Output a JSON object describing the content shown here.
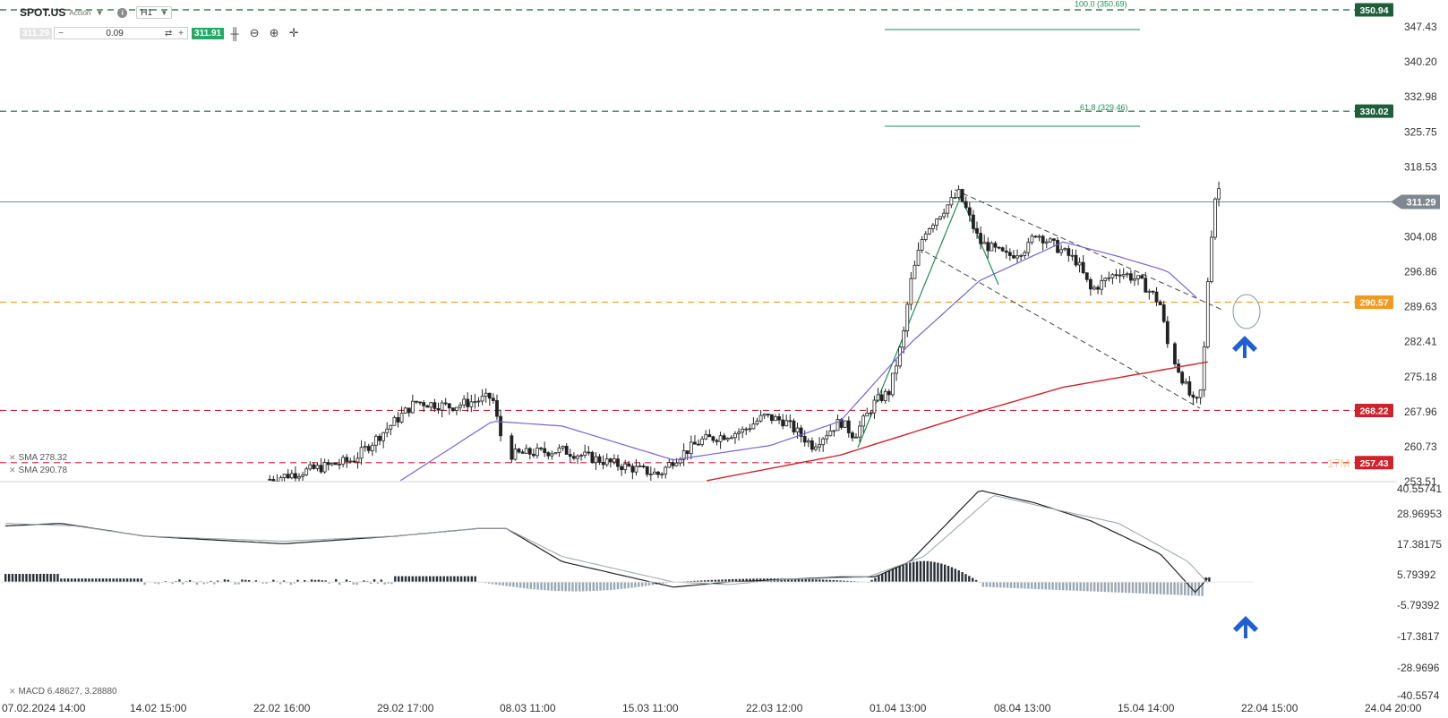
{
  "header": {
    "symbol": "SPOT.US",
    "symbol_type": "Acción",
    "timeframe": "H1",
    "sell_price": "311.29",
    "quantity": "0.09",
    "buy_price": "311.91"
  },
  "price_axis_labels": [
    "347.43",
    "340.20",
    "332.98",
    "325.75",
    "318.53",
    "304.08",
    "296.86",
    "289.63",
    "282.41",
    "275.18",
    "267.96",
    "260.73",
    "253.51"
  ],
  "price_axis_range": [
    253.51,
    351.5
  ],
  "macd_axis_labels": [
    "40.55741",
    "28.96953",
    "17.38175",
    "5.79392",
    "-5.79392",
    "-17.3817",
    "-28.9696",
    "-40.5574"
  ],
  "macd_axis_range": [
    -40.5574,
    40.55741
  ],
  "time_labels": [
    "07.02.2024 14:00",
    "14.02 15:00",
    "22.02 16:00",
    "29.02 17:00",
    "08.03 11:00",
    "15.03 11:00",
    "22.03 12:00",
    "01.04 13:00",
    "08.04 13:00",
    "15.04 14:00",
    "22.04 15:00",
    "24.04 20:00"
  ],
  "levels": [
    {
      "value": 350.94,
      "label": "350.94",
      "color": "#1e5e3a",
      "style": "dashed"
    },
    {
      "value": 330.02,
      "label": "330.02",
      "color": "#1e5e3a",
      "style": "dashed"
    },
    {
      "value": 290.57,
      "label": "290.57",
      "color": "#f39a1e",
      "style": "dashed"
    },
    {
      "value": 268.22,
      "label": "268.22",
      "color": "#d0222b",
      "style": "dashed"
    },
    {
      "value": 257.43,
      "label": "257.43",
      "color": "#d0222b",
      "style": "dashed"
    }
  ],
  "current_price": {
    "value": 311.29,
    "label": "311.29",
    "color": "#7f8890"
  },
  "fib_labels": [
    {
      "text": "100.0 (350.69)",
      "value": 350.69
    },
    {
      "text": "61.8 (329.46)",
      "value": 329.46
    }
  ],
  "overlay_text": "17M",
  "legends": {
    "sma1": "SMA 278.32",
    "sma2": "SMA 290.78",
    "macd": "MACD 6.48627, 3.28880"
  },
  "colors": {
    "sma_fast": "#7b62d6",
    "sma_slow": "#d0222b",
    "fib": "#1e8c57",
    "arrow": "#1f5fd1",
    "macd_line": "#222222",
    "signal_line": "#9aa2a8",
    "hist_pos": "#2a2f36",
    "hist_neg": "#9aa8b3"
  },
  "icons": [
    "chevron-down-icon",
    "info-icon",
    "swap-icon",
    "plus-icon",
    "minus-icon",
    "candles-icon",
    "zoom-out-icon",
    "zoom-in-icon",
    "crosshair-icon",
    "arrow-up-icon"
  ],
  "chart_data": {
    "type": "candlestick",
    "price_keypoints": [
      [
        0,
        252
      ],
      [
        0.19,
        254
      ],
      [
        0.25,
        258
      ],
      [
        0.28,
        266
      ],
      [
        0.295,
        270
      ],
      [
        0.32,
        269
      ],
      [
        0.35,
        271
      ],
      [
        0.355,
        264
      ],
      [
        0.36,
        259
      ],
      [
        0.4,
        260
      ],
      [
        0.44,
        257
      ],
      [
        0.47,
        255
      ],
      [
        0.48,
        258
      ],
      [
        0.5,
        262
      ],
      [
        0.53,
        264
      ],
      [
        0.545,
        267
      ],
      [
        0.56,
        266
      ],
      [
        0.58,
        261
      ],
      [
        0.6,
        266
      ],
      [
        0.61,
        263
      ],
      [
        0.625,
        270
      ],
      [
        0.635,
        272
      ],
      [
        0.645,
        283
      ],
      [
        0.65,
        294
      ],
      [
        0.66,
        305
      ],
      [
        0.675,
        310
      ],
      [
        0.685,
        313
      ],
      [
        0.69,
        310
      ],
      [
        0.7,
        303
      ],
      [
        0.72,
        300
      ],
      [
        0.735,
        302
      ],
      [
        0.74,
        305
      ],
      [
        0.755,
        302
      ],
      [
        0.77,
        299
      ],
      [
        0.78,
        293
      ],
      [
        0.8,
        297
      ],
      [
        0.815,
        295
      ],
      [
        0.825,
        292
      ],
      [
        0.83,
        290
      ],
      [
        0.835,
        282
      ],
      [
        0.85,
        272
      ],
      [
        0.855,
        269
      ],
      [
        0.86,
        273
      ],
      [
        0.865,
        300
      ],
      [
        0.87,
        314
      ]
    ],
    "sma_fast_keypoints": [
      [
        0.28,
        253
      ],
      [
        0.35,
        266
      ],
      [
        0.4,
        265
      ],
      [
        0.48,
        258
      ],
      [
        0.55,
        261
      ],
      [
        0.6,
        266
      ],
      [
        0.65,
        282
      ],
      [
        0.7,
        295
      ],
      [
        0.76,
        303
      ],
      [
        0.8,
        300
      ],
      [
        0.835,
        297
      ],
      [
        0.86,
        290.5
      ]
    ],
    "sma_slow_keypoints": [
      [
        0.5,
        253.5
      ],
      [
        0.6,
        259
      ],
      [
        0.7,
        268
      ],
      [
        0.76,
        273
      ],
      [
        0.82,
        276
      ],
      [
        0.865,
        278.3
      ]
    ],
    "macd_keypoints": [
      [
        0,
        26
      ],
      [
        0.04,
        27
      ],
      [
        0.1,
        22
      ],
      [
        0.2,
        19
      ],
      [
        0.28,
        22
      ],
      [
        0.34,
        25
      ],
      [
        0.36,
        25
      ],
      [
        0.4,
        12
      ],
      [
        0.48,
        2
      ],
      [
        0.52,
        4
      ],
      [
        0.56,
        5
      ],
      [
        0.6,
        6
      ],
      [
        0.625,
        6
      ],
      [
        0.65,
        12
      ],
      [
        0.7,
        40
      ],
      [
        0.74,
        35
      ],
      [
        0.78,
        28
      ],
      [
        0.83,
        15
      ],
      [
        0.855,
        0
      ],
      [
        0.865,
        6
      ]
    ],
    "signal_keypoints": [
      [
        0,
        27
      ],
      [
        0.05,
        26
      ],
      [
        0.1,
        22
      ],
      [
        0.2,
        20
      ],
      [
        0.28,
        22
      ],
      [
        0.34,
        25
      ],
      [
        0.36,
        25
      ],
      [
        0.4,
        14
      ],
      [
        0.48,
        4
      ],
      [
        0.52,
        3
      ],
      [
        0.56,
        5
      ],
      [
        0.62,
        6
      ],
      [
        0.66,
        14
      ],
      [
        0.71,
        38
      ],
      [
        0.75,
        33
      ],
      [
        0.8,
        27
      ],
      [
        0.85,
        12
      ],
      [
        0.865,
        3
      ]
    ]
  }
}
